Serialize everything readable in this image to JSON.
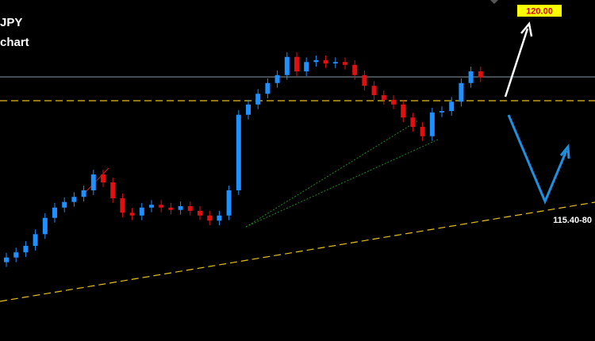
{
  "chart_data": {
    "type": "candlestick",
    "title": "JPY",
    "subtitle": "chart",
    "annotations": [
      "120.00",
      "115.40-80"
    ],
    "up_color": "#1e90ff",
    "down_color": "#e01010",
    "ylim": [
      112.91,
      120.22
    ],
    "open": [
      114.6,
      114.7,
      114.81,
      114.95,
      115.2,
      115.55,
      115.77,
      115.89,
      116.0,
      116.14,
      116.48,
      116.31,
      115.97,
      115.66,
      115.6,
      115.77,
      115.83,
      115.77,
      115.72,
      115.8,
      115.7,
      115.6,
      115.49,
      115.6,
      116.14,
      117.76,
      117.98,
      118.21,
      118.44,
      118.61,
      119.0,
      118.69,
      118.89,
      118.93,
      118.86,
      118.89,
      118.83,
      118.61,
      118.38,
      118.18,
      118.08,
      117.98,
      117.7,
      117.5,
      117.3,
      117.81,
      117.84,
      118.04,
      118.44,
      118.69
    ],
    "high": [
      114.8,
      114.91,
      115.05,
      115.3,
      115.65,
      115.87,
      115.99,
      116.1,
      116.24,
      116.58,
      116.58,
      116.41,
      116.07,
      115.76,
      115.87,
      115.93,
      115.93,
      115.87,
      115.9,
      115.9,
      115.8,
      115.7,
      115.7,
      116.24,
      117.86,
      118.08,
      118.31,
      118.54,
      118.71,
      119.1,
      119.1,
      118.99,
      119.03,
      119.03,
      118.99,
      118.99,
      118.93,
      118.71,
      118.48,
      118.28,
      118.18,
      118.08,
      117.8,
      117.6,
      117.91,
      117.94,
      118.14,
      118.54,
      118.79,
      118.79
    ],
    "low": [
      114.5,
      114.6,
      114.71,
      114.85,
      115.1,
      115.45,
      115.67,
      115.79,
      115.9,
      116.04,
      116.21,
      115.87,
      115.56,
      115.5,
      115.5,
      115.67,
      115.67,
      115.62,
      115.62,
      115.6,
      115.5,
      115.39,
      115.39,
      115.5,
      116.04,
      117.66,
      117.88,
      118.11,
      118.34,
      118.51,
      118.59,
      118.59,
      118.79,
      118.76,
      118.76,
      118.73,
      118.51,
      118.28,
      118.08,
      117.98,
      117.88,
      117.6,
      117.4,
      117.2,
      117.2,
      117.71,
      117.74,
      117.94,
      118.34,
      118.46
    ],
    "close": [
      114.7,
      114.81,
      114.95,
      115.2,
      115.55,
      115.77,
      115.89,
      116.0,
      116.14,
      116.48,
      116.31,
      115.97,
      115.66,
      115.6,
      115.77,
      115.83,
      115.77,
      115.72,
      115.8,
      115.7,
      115.6,
      115.49,
      115.6,
      116.14,
      117.76,
      117.98,
      118.21,
      118.44,
      118.61,
      119.0,
      118.69,
      118.89,
      118.93,
      118.86,
      118.89,
      118.83,
      118.61,
      118.38,
      118.18,
      118.08,
      117.98,
      117.7,
      117.5,
      117.3,
      117.81,
      117.84,
      118.04,
      118.44,
      118.69,
      118.56
    ]
  }
}
